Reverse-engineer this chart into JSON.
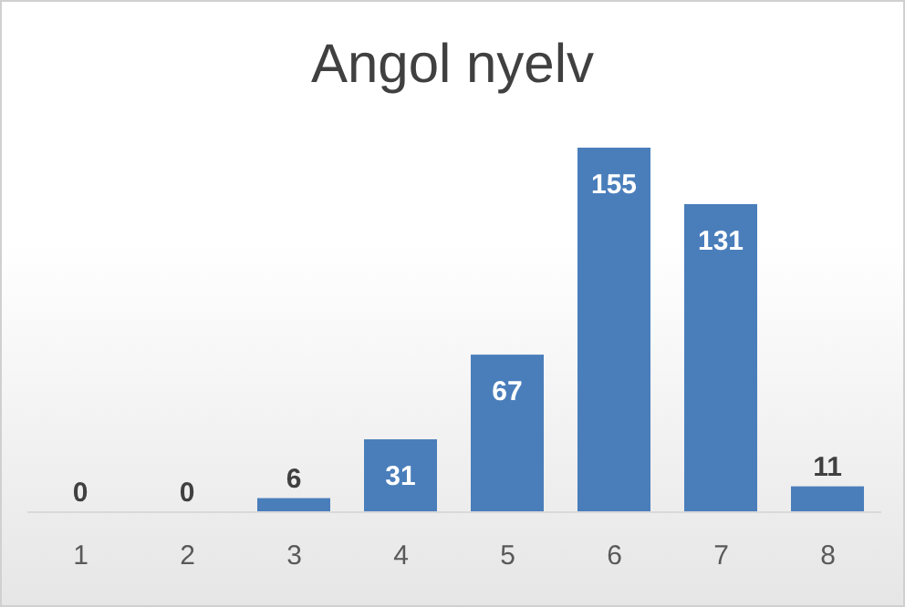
{
  "chart_data": {
    "type": "bar",
    "title": "Angol nyelv",
    "categories": [
      "1",
      "2",
      "3",
      "4",
      "5",
      "6",
      "7",
      "8"
    ],
    "values": [
      0,
      0,
      6,
      31,
      67,
      155,
      131,
      11
    ],
    "color": "#4a7ebb",
    "data_labels": true
  }
}
